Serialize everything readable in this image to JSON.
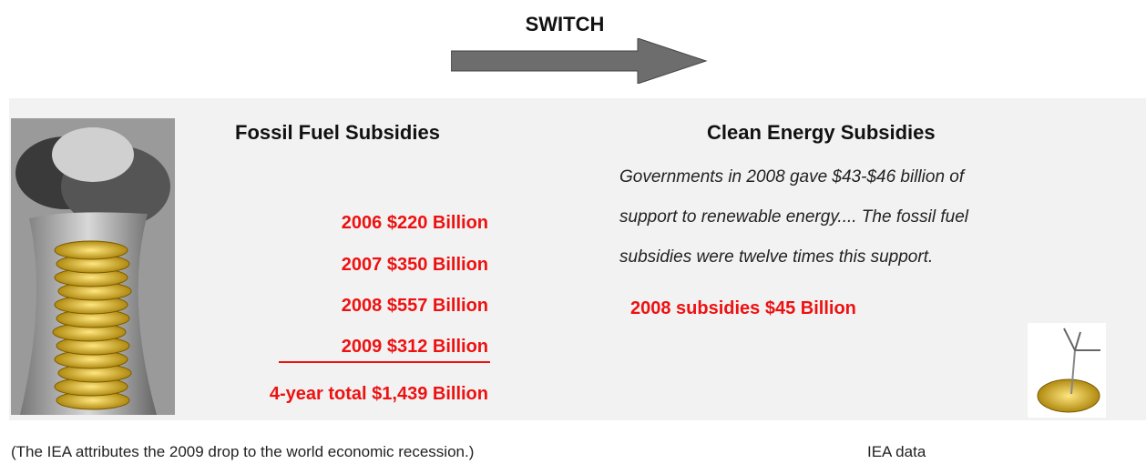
{
  "header": {
    "title": "SWITCH"
  },
  "fossil": {
    "heading": "Fossil Fuel Subsidies",
    "rows": [
      "2006  $220 Billion",
      "2007  $350 Billion",
      "2008  $557 Billion",
      "2009  $312 Billion"
    ],
    "total": "4-year total $1,439 Billion"
  },
  "clean": {
    "heading": "Clean Energy Subsidies",
    "quote": [
      "Governments in 2008 gave $43-$46 billion of",
      "support to renewable energy.... The fossil fuel",
      "subsidies were twelve times this support."
    ],
    "highlight": "2008 subsidies $45 Billion"
  },
  "footer": {
    "note": "(The IEA attributes the 2009 drop to the world economic recession.)",
    "source": "IEA data"
  }
}
